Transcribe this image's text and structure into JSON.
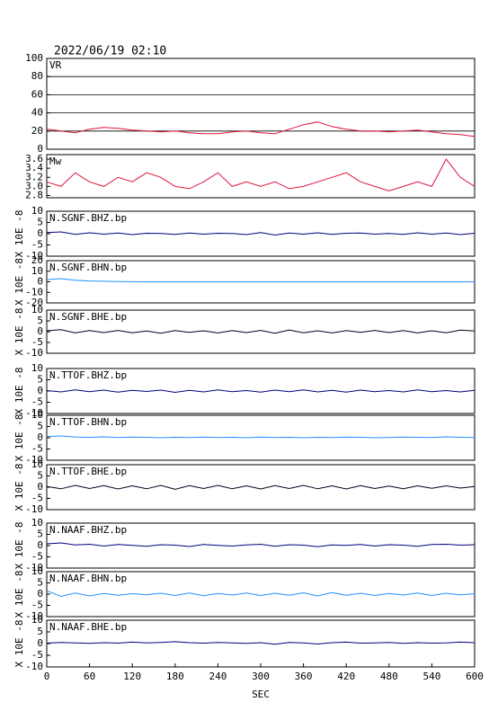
{
  "chart_data": [
    {
      "type": "line",
      "title": "2022/06/19 02:10",
      "label": "VR",
      "color": "#dc143c",
      "grid": true,
      "x": [
        0,
        20,
        40,
        60,
        80,
        100,
        120,
        140,
        160,
        180,
        200,
        220,
        240,
        260,
        280,
        300,
        320,
        340,
        360,
        380,
        400,
        420,
        440,
        460,
        480,
        500,
        520,
        540,
        560,
        580,
        600
      ],
      "values": [
        22,
        20,
        18,
        22,
        24,
        23,
        21,
        20,
        19,
        20,
        18,
        17,
        17,
        19,
        20,
        18,
        17,
        22,
        27,
        30,
        25,
        22,
        20,
        20,
        19,
        20,
        21,
        19,
        17,
        16,
        14
      ],
      "xlim": [
        0,
        600
      ],
      "ylim": [
        0,
        100
      ],
      "yticks": [
        0,
        20,
        40,
        60,
        80,
        100
      ]
    },
    {
      "type": "line",
      "label": "Mw",
      "color": "#dc143c",
      "x": [
        0,
        20,
        40,
        60,
        80,
        100,
        120,
        140,
        160,
        180,
        200,
        220,
        240,
        260,
        280,
        300,
        320,
        340,
        360,
        380,
        400,
        420,
        440,
        460,
        480,
        500,
        520,
        540,
        560,
        580,
        600
      ],
      "values": [
        3.1,
        3.0,
        3.3,
        3.1,
        3.0,
        3.2,
        3.1,
        3.3,
        3.2,
        3.0,
        2.95,
        3.1,
        3.3,
        3.0,
        3.1,
        3.0,
        3.1,
        2.95,
        3.0,
        3.1,
        3.2,
        3.3,
        3.1,
        3.0,
        2.9,
        3.0,
        3.1,
        3.0,
        3.6,
        3.2,
        3.0
      ],
      "xlim": [
        0,
        600
      ],
      "ylim": [
        2.75,
        3.7
      ],
      "yticks": [
        2.8,
        {
          "value": 3,
          "label": "3.0"
        },
        3.2,
        3.4,
        3.6
      ]
    },
    {
      "type": "line",
      "label": "N.SGNF.BHZ.bp",
      "ylabel": "X 10E -8",
      "color": "#000080",
      "x": [
        0,
        20,
        40,
        60,
        80,
        100,
        120,
        140,
        160,
        180,
        200,
        220,
        240,
        260,
        280,
        300,
        320,
        340,
        360,
        380,
        400,
        420,
        440,
        460,
        480,
        500,
        520,
        540,
        560,
        580,
        600
      ],
      "values": [
        0.5,
        0.8,
        -0.3,
        0.4,
        -0.2,
        0.3,
        -0.4,
        0.2,
        0.1,
        -0.3,
        0.3,
        -0.2,
        0.2,
        0.1,
        -0.4,
        0.5,
        -0.6,
        0.3,
        -0.2,
        0.4,
        -0.3,
        0.2,
        0.3,
        -0.2,
        0.1,
        -0.3,
        0.4,
        -0.2,
        0.3,
        -0.4,
        0.2
      ],
      "xlim": [
        0,
        600
      ],
      "ylim": [
        -10,
        10
      ],
      "yticks": [
        -10,
        -5,
        0,
        5,
        10
      ]
    },
    {
      "type": "line",
      "label": "N.SGNF.BHN.bp",
      "ylabel": "X 10E -8",
      "color": "#1e90ff",
      "x": [
        0,
        20,
        40,
        60,
        80,
        100,
        120,
        140,
        160,
        180,
        200,
        220,
        240,
        260,
        280,
        300,
        320,
        340,
        360,
        380,
        400,
        420,
        440,
        460,
        480,
        500,
        520,
        540,
        560,
        580,
        600
      ],
      "values": [
        2,
        3,
        1.5,
        0.8,
        0.5,
        0.2,
        0.1,
        0,
        0,
        0,
        0,
        0,
        0,
        0,
        0,
        0,
        0,
        0,
        0,
        0,
        0,
        0,
        0,
        0,
        0,
        0,
        0,
        0,
        0,
        0,
        0
      ],
      "xlim": [
        0,
        600
      ],
      "ylim": [
        -20,
        20
      ],
      "yticks": [
        -20,
        -10,
        0,
        10,
        20
      ]
    },
    {
      "type": "line",
      "label": "N.SGNF.BHE.bp",
      "ylabel": "X 10E -8",
      "color": "#000020",
      "x": [
        0,
        20,
        40,
        60,
        80,
        100,
        120,
        140,
        160,
        180,
        200,
        220,
        240,
        260,
        280,
        300,
        320,
        340,
        360,
        380,
        400,
        420,
        440,
        460,
        480,
        500,
        520,
        540,
        560,
        580,
        600
      ],
      "values": [
        0.4,
        0.9,
        -0.6,
        0.5,
        -0.4,
        0.6,
        -0.5,
        0.3,
        -0.7,
        0.5,
        -0.3,
        0.4,
        -0.6,
        0.5,
        -0.4,
        0.6,
        -0.7,
        0.8,
        -0.5,
        0.4,
        -0.6,
        0.5,
        -0.3,
        0.6,
        -0.4,
        0.5,
        -0.6,
        0.4,
        -0.5,
        0.7,
        0.3
      ],
      "xlim": [
        0,
        600
      ],
      "ylim": [
        -10,
        10
      ],
      "yticks": [
        -10,
        -5,
        0,
        5,
        10
      ]
    },
    {
      "type": "line",
      "label": "N.TTOF.BHZ.bp",
      "ylabel": "X 10E -8",
      "color": "#000080",
      "x": [
        0,
        20,
        40,
        60,
        80,
        100,
        120,
        140,
        160,
        180,
        200,
        220,
        240,
        260,
        280,
        300,
        320,
        340,
        360,
        380,
        400,
        420,
        440,
        460,
        480,
        500,
        520,
        540,
        560,
        580,
        600
      ],
      "values": [
        0.2,
        -0.4,
        0.5,
        -0.3,
        0.4,
        -0.5,
        0.3,
        -0.2,
        0.4,
        -0.6,
        0.3,
        -0.4,
        0.5,
        -0.3,
        0.2,
        -0.5,
        0.4,
        -0.3,
        0.5,
        -0.4,
        0.3,
        -0.5,
        0.4,
        -0.3,
        0.2,
        -0.4,
        0.5,
        -0.3,
        0.2,
        -0.4,
        0.3
      ],
      "xlim": [
        0,
        600
      ],
      "ylim": [
        -10,
        10
      ],
      "yticks": [
        -10,
        -5,
        0,
        5,
        10
      ]
    },
    {
      "type": "line",
      "label": "N.TTOF.BHN.bp",
      "ylabel": "X 10E -8",
      "color": "#1e90ff",
      "x": [
        0,
        20,
        40,
        60,
        80,
        100,
        120,
        140,
        160,
        180,
        200,
        220,
        240,
        260,
        280,
        300,
        320,
        340,
        360,
        380,
        400,
        420,
        440,
        460,
        480,
        500,
        520,
        540,
        560,
        580,
        600
      ],
      "values": [
        0.5,
        0.8,
        0.3,
        0.2,
        0.4,
        0.1,
        0.3,
        0.2,
        0,
        0.2,
        0.1,
        0.3,
        0.1,
        0.2,
        0,
        0.3,
        0.1,
        0.2,
        0,
        0.2,
        0.1,
        0.3,
        0.2,
        0,
        0.1,
        0.3,
        0.2,
        0.1,
        0.4,
        0.2,
        0.1
      ],
      "xlim": [
        0,
        600
      ],
      "ylim": [
        -10,
        10
      ],
      "yticks": [
        -10,
        -5,
        0,
        5,
        10
      ]
    },
    {
      "type": "line",
      "label": "N.TTOF.BHE.bp",
      "ylabel": "X 10E -8",
      "color": "#000020",
      "x": [
        0,
        20,
        40,
        60,
        80,
        100,
        120,
        140,
        160,
        180,
        200,
        220,
        240,
        260,
        280,
        300,
        320,
        340,
        360,
        380,
        400,
        420,
        440,
        460,
        480,
        500,
        520,
        540,
        560,
        580,
        600
      ],
      "values": [
        0.3,
        -0.7,
        0.8,
        -0.6,
        0.7,
        -0.8,
        0.6,
        -0.7,
        0.8,
        -0.9,
        0.7,
        -0.6,
        0.8,
        -0.7,
        0.6,
        -0.8,
        0.7,
        -0.6,
        0.8,
        -0.7,
        0.6,
        -0.8,
        0.7,
        -0.6,
        0.5,
        -0.7,
        0.6,
        -0.5,
        0.6,
        -0.4,
        0.3
      ],
      "xlim": [
        0,
        600
      ],
      "ylim": [
        -10,
        10
      ],
      "yticks": [
        -10,
        -5,
        0,
        5,
        10
      ]
    },
    {
      "type": "line",
      "label": "N.NAAF.BHZ.bp",
      "ylabel": "X 10E -8",
      "color": "#000080",
      "x": [
        0,
        20,
        40,
        60,
        80,
        100,
        120,
        140,
        160,
        180,
        200,
        220,
        240,
        260,
        280,
        300,
        320,
        340,
        360,
        380,
        400,
        420,
        440,
        460,
        480,
        500,
        520,
        540,
        560,
        580,
        600
      ],
      "values": [
        0.8,
        1.2,
        0.3,
        0.6,
        -0.2,
        0.5,
        0.1,
        -0.3,
        0.4,
        0.2,
        -0.4,
        0.5,
        0.1,
        -0.2,
        0.3,
        0.6,
        -0.3,
        0.4,
        0.2,
        -0.5,
        0.3,
        0.1,
        0.5,
        -0.2,
        0.4,
        0.2,
        -0.3,
        0.5,
        0.6,
        0.2,
        0.4
      ],
      "xlim": [
        0,
        600
      ],
      "ylim": [
        -10,
        10
      ],
      "yticks": [
        -10,
        -5,
        0,
        5,
        10
      ]
    },
    {
      "type": "line",
      "label": "N.NAAF.BHN.bp",
      "ylabel": "X 10E -8",
      "color": "#1e90ff",
      "x": [
        0,
        20,
        40,
        60,
        80,
        100,
        120,
        140,
        160,
        180,
        200,
        220,
        240,
        260,
        280,
        300,
        320,
        340,
        360,
        380,
        400,
        420,
        440,
        460,
        480,
        500,
        520,
        540,
        560,
        580,
        600
      ],
      "values": [
        1.5,
        -1,
        0.5,
        -0.8,
        0.3,
        -0.5,
        0.2,
        -0.3,
        0.4,
        -0.6,
        0.5,
        -0.7,
        0.3,
        -0.4,
        0.5,
        -0.6,
        0.4,
        -0.5,
        0.6,
        -0.8,
        0.7,
        -0.5,
        0.4,
        -0.6,
        0.3,
        -0.4,
        0.5,
        -0.6,
        0.4,
        -0.3,
        0.2
      ],
      "xlim": [
        0,
        600
      ],
      "ylim": [
        -10,
        10
      ],
      "yticks": [
        -10,
        -5,
        0,
        5,
        10
      ]
    },
    {
      "type": "line",
      "label": "N.NAAF.BHE.bp",
      "ylabel": "X 10E -8",
      "color": "#000080",
      "x": [
        0,
        20,
        40,
        60,
        80,
        100,
        120,
        140,
        160,
        180,
        200,
        220,
        240,
        260,
        280,
        300,
        320,
        340,
        360,
        380,
        400,
        420,
        440,
        460,
        480,
        500,
        520,
        540,
        560,
        580,
        600
      ],
      "values": [
        0.2,
        0.5,
        0.3,
        0.1,
        0.4,
        0.2,
        0.6,
        0.3,
        0.5,
        0.8,
        0.4,
        0.2,
        0.5,
        0.3,
        0.1,
        0.4,
        -0.3,
        0.5,
        0.3,
        -0.2,
        0.4,
        0.6,
        0.2,
        0.3,
        0.5,
        0.1,
        0.4,
        0.2,
        0.3,
        0.6,
        0.4
      ],
      "xlim": [
        0,
        600
      ],
      "ylim": [
        -10,
        10
      ],
      "yticks": [
        -10,
        -5,
        0,
        5,
        10
      ],
      "xticks": [
        0,
        60,
        120,
        180,
        240,
        300,
        360,
        420,
        480,
        540,
        600
      ],
      "xlabel": "SEC"
    }
  ]
}
